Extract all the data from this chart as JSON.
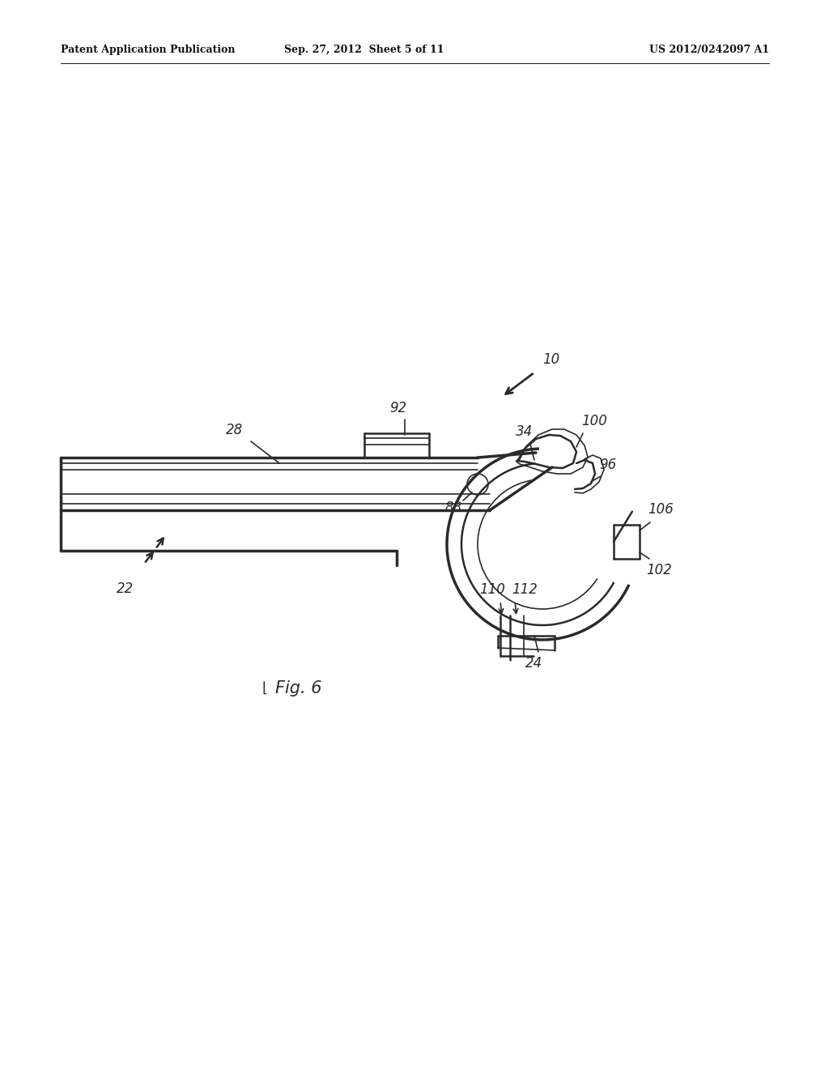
{
  "bg_color": "#ffffff",
  "line_color": "#2a2a2a",
  "header_left": "Patent Application Publication",
  "header_mid": "Sep. 27, 2012  Sheet 5 of 11",
  "header_right": "US 2012/0242097 A1",
  "fig_label": "Fig. 6"
}
